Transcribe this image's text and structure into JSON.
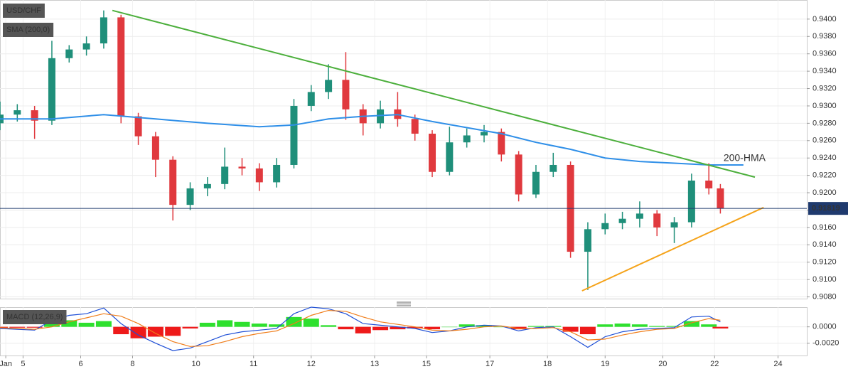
{
  "chart_data": [
    {
      "type": "candlestick",
      "title": "USD/CHF",
      "indicator_label": "SMA (200,0)",
      "x": [
        0,
        3,
        6,
        9,
        12,
        15,
        18,
        21,
        24,
        27,
        30,
        33,
        36,
        39,
        42,
        45,
        48,
        51,
        54,
        57,
        60,
        63,
        66,
        69,
        72,
        75,
        78,
        81,
        84,
        87,
        90,
        93,
        96,
        99,
        102,
        105,
        108,
        111,
        114,
        117,
        120,
        123,
        125
      ],
      "open": [
        0.928,
        0.929,
        0.9295,
        0.9283,
        0.9355,
        0.9365,
        0.9372,
        0.9402,
        0.9288,
        0.9265,
        0.9238,
        0.9186,
        0.9205,
        0.921,
        0.923,
        0.9228,
        0.9212,
        0.9232,
        0.93,
        0.9316,
        0.933,
        0.9296,
        0.928,
        0.9296,
        0.9285,
        0.9268,
        0.9224,
        0.9258,
        0.9266,
        0.927,
        0.9244,
        0.9198,
        0.9224,
        0.9232,
        0.9132,
        0.9158,
        0.9165,
        0.917,
        0.9176,
        0.916,
        0.9166,
        0.9214,
        0.9205
      ],
      "high": [
        0.9305,
        0.9302,
        0.93,
        0.9375,
        0.937,
        0.938,
        0.941,
        0.9405,
        0.9292,
        0.927,
        0.9242,
        0.9212,
        0.9218,
        0.9252,
        0.924,
        0.9234,
        0.924,
        0.9308,
        0.9324,
        0.9348,
        0.9362,
        0.9302,
        0.9306,
        0.9316,
        0.929,
        0.9272,
        0.9276,
        0.9274,
        0.9278,
        0.9274,
        0.9248,
        0.9232,
        0.9246,
        0.9236,
        0.9166,
        0.9176,
        0.9178,
        0.919,
        0.918,
        0.9172,
        0.9222,
        0.9234,
        0.921
      ],
      "low": [
        0.9272,
        0.9282,
        0.9262,
        0.9278,
        0.935,
        0.9358,
        0.9366,
        0.928,
        0.9255,
        0.9218,
        0.9168,
        0.918,
        0.9196,
        0.9204,
        0.922,
        0.9202,
        0.9206,
        0.9228,
        0.9294,
        0.9308,
        0.9284,
        0.9266,
        0.9274,
        0.9276,
        0.926,
        0.9218,
        0.922,
        0.9252,
        0.9258,
        0.9236,
        0.919,
        0.9194,
        0.9218,
        0.9125,
        0.9088,
        0.9152,
        0.9158,
        0.916,
        0.915,
        0.9142,
        0.916,
        0.9198,
        0.9176
      ],
      "close": [
        0.929,
        0.9295,
        0.9283,
        0.9355,
        0.9365,
        0.9372,
        0.9402,
        0.9288,
        0.9265,
        0.9238,
        0.9186,
        0.9205,
        0.921,
        0.923,
        0.9228,
        0.9212,
        0.9232,
        0.93,
        0.9316,
        0.933,
        0.9296,
        0.928,
        0.9296,
        0.9285,
        0.9268,
        0.9224,
        0.9258,
        0.9266,
        0.927,
        0.9244,
        0.9198,
        0.9224,
        0.9232,
        0.9132,
        0.9158,
        0.9165,
        0.917,
        0.9176,
        0.916,
        0.9166,
        0.9214,
        0.9205,
        0.9182
      ],
      "up_color": "#1f8f7a",
      "down_color": "#e0393e",
      "series": [
        {
          "name": "200-HMA",
          "color": "#2f8fe8",
          "x": [
            0,
            9,
            18,
            27,
            36,
            45,
            51,
            57,
            63,
            69,
            75,
            81,
            87,
            93,
            99,
            105,
            111,
            117,
            123,
            129
          ],
          "values": [
            0.9285,
            0.9285,
            0.929,
            0.9285,
            0.928,
            0.9276,
            0.9278,
            0.9285,
            0.9288,
            0.929,
            0.9282,
            0.9275,
            0.9268,
            0.9258,
            0.925,
            0.924,
            0.9236,
            0.9234,
            0.9232,
            0.9232
          ]
        }
      ],
      "trendlines": [
        {
          "color": "#4caf3c",
          "x": [
            19.5,
            131
          ],
          "values": [
            0.941,
            0.9218
          ]
        },
        {
          "color": "#f5a31a",
          "x": [
            101,
            132.5
          ],
          "values": [
            0.9087,
            0.9183
          ]
        }
      ],
      "last_price": 0.91819,
      "last_price_color": "#1f3a6e",
      "xlim": [
        0,
        140
      ],
      "ylim": [
        0.9078,
        0.9422
      ],
      "yticks": [
        {
          "value": 0.908,
          "label": "0.9080"
        },
        {
          "value": 0.91,
          "label": "0.9100"
        },
        {
          "value": 0.912,
          "label": "0.9120"
        },
        {
          "value": 0.914,
          "label": "0.9140"
        },
        {
          "value": 0.916,
          "label": "0.9160"
        },
        {
          "value": 0.918,
          "label": "0.9180"
        },
        {
          "value": 0.92,
          "label": "0.9200"
        },
        {
          "value": 0.922,
          "label": "0.9220"
        },
        {
          "value": 0.924,
          "label": "0.9240"
        },
        {
          "value": 0.926,
          "label": "0.9260"
        },
        {
          "value": 0.928,
          "label": "0.9280"
        },
        {
          "value": 0.93,
          "label": "0.9300"
        },
        {
          "value": 0.932,
          "label": "0.9320"
        },
        {
          "value": 0.934,
          "label": "0.9340"
        },
        {
          "value": 0.936,
          "label": "0.9360"
        },
        {
          "value": 0.938,
          "label": "0.9380"
        },
        {
          "value": 0.94,
          "label": "0.9400"
        }
      ],
      "xticks": [
        {
          "value": 1,
          "label": "Jan"
        },
        {
          "value": 4,
          "label": "5"
        },
        {
          "value": 14,
          "label": "6"
        },
        {
          "value": 23,
          "label": "8"
        },
        {
          "value": 34,
          "label": "10"
        },
        {
          "value": 44,
          "label": "11"
        },
        {
          "value": 54,
          "label": "12"
        },
        {
          "value": 65,
          "label": "13"
        },
        {
          "value": 74,
          "label": "15"
        },
        {
          "value": 85,
          "label": "17"
        },
        {
          "value": 95,
          "label": "18"
        },
        {
          "value": 105,
          "label": "19"
        },
        {
          "value": 115,
          "label": "20"
        },
        {
          "value": 124,
          "label": "22"
        },
        {
          "value": 135,
          "label": "24"
        }
      ],
      "grid": true
    },
    {
      "type": "macd",
      "title": "MACD (12,26,9)",
      "series": [
        {
          "color": "#1f4fd6",
          "values": [
            -0.0002,
            -0.0003,
            -0.0004,
            0.0008,
            0.0014,
            0.0016,
            0.0023,
            0.0004,
            -0.001,
            -0.002,
            -0.0029,
            -0.0026,
            -0.0018,
            -0.001,
            -0.0006,
            -0.0004,
            -0.0002,
            0.0016,
            0.0024,
            0.0022,
            0.0016,
            0.0004,
            0.0002,
            0,
            -0.0002,
            -0.0007,
            -0.0005,
            0,
            0.0002,
            0.0001,
            -0.0005,
            -0.0001,
            0,
            -0.0012,
            -0.0025,
            -0.0012,
            -0.0006,
            -0.0003,
            -0.0002,
            -0.0001,
            0.0012,
            0.0013,
            0.0006
          ]
        },
        {
          "color": "#f07d1a",
          "values": [
            -0.0001,
            -0.0002,
            -0.0003,
            0,
            0.0006,
            0.0011,
            0.0016,
            0.0013,
            0.0004,
            -0.0008,
            -0.0018,
            -0.0024,
            -0.0023,
            -0.0018,
            -0.0012,
            -0.0008,
            -0.0005,
            0.0004,
            0.0014,
            0.002,
            0.0019,
            0.0012,
            0.0006,
            0.0003,
            0,
            -0.0004,
            -0.0005,
            -0.0003,
            0,
            0.0001,
            -0.0002,
            -0.0002,
            -0.0001,
            -0.0006,
            -0.0016,
            -0.0015,
            -0.001,
            -0.0006,
            -0.0003,
            -0.0002,
            0.0005,
            0.001,
            0.0008
          ]
        }
      ],
      "histogram": {
        "up_color": "#2ee02e",
        "down_color": "#ee1a1a",
        "values": [
          -0.0001,
          -0.0001,
          -0.0001,
          0.0008,
          0.0008,
          0.0005,
          0.0007,
          -0.0009,
          -0.0014,
          -0.0012,
          -0.0011,
          -0.0002,
          0.0005,
          0.0008,
          0.0006,
          0.0004,
          0.0003,
          0.0012,
          0.001,
          0.0002,
          -0.0003,
          -0.0008,
          -0.0004,
          -0.0003,
          -0.0002,
          -0.0003,
          0,
          0.0003,
          0.0002,
          0,
          -0.0003,
          0.0001,
          0.0001,
          -0.0006,
          -0.0009,
          0.0003,
          0.0004,
          0.0003,
          0.0001,
          0.0001,
          0.0007,
          0.0003,
          -0.0002
        ]
      },
      "ylim": [
        -0.0035,
        0.0024
      ],
      "yticks": [
        {
          "value": -0.002,
          "label": "-0.0020"
        },
        {
          "value": 0,
          "label": "0.0000"
        }
      ],
      "grid": true
    }
  ]
}
